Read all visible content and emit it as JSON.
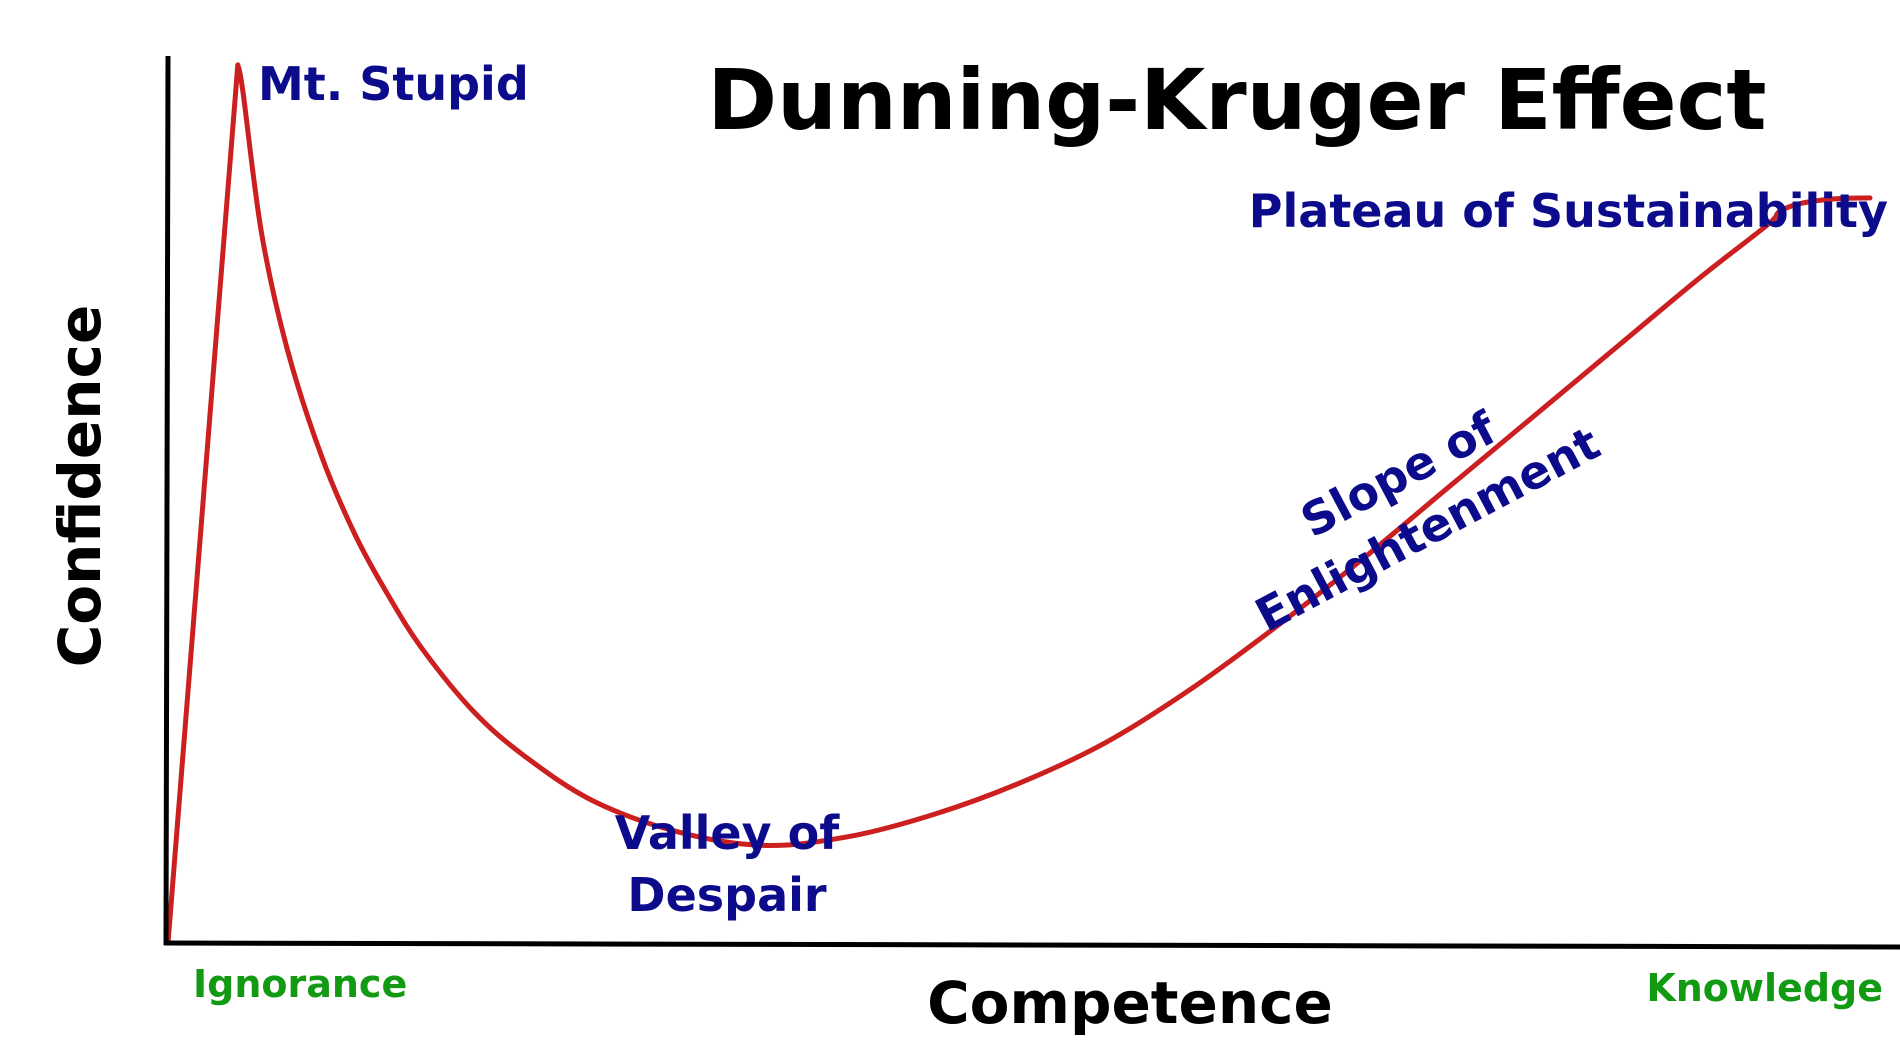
{
  "chart_data": {
    "type": "line",
    "title": "Dunning-Kruger Effect",
    "xlabel": "Competence",
    "ylabel": "Confidence",
    "x_tick_labels": [
      "Ignorance",
      "Knowledge"
    ],
    "grid": false,
    "xlim": [
      0,
      100
    ],
    "ylim": [
      0,
      100
    ],
    "series": [
      {
        "x": [
          0,
          4.1,
          4.4,
          5.5,
          7,
          9,
          11,
          13,
          15,
          18,
          21,
          25,
          30,
          35,
          40,
          45,
          50,
          55,
          60,
          65,
          70,
          75,
          80,
          85,
          90,
          94,
          94.7,
          96,
          98,
          100
        ],
        "y": [
          0,
          99,
          96,
          80,
          67,
          55,
          46,
          39,
          33,
          26,
          21,
          16,
          12.5,
          11,
          12,
          14.5,
          18,
          22.5,
          28.5,
          35.5,
          43,
          51,
          59,
          67,
          75,
          81,
          82.5,
          83.4,
          83.9,
          84
        ]
      }
    ],
    "annotations": [
      {
        "id": "mt-stupid",
        "text": "Mt. Stupid"
      },
      {
        "id": "valley",
        "lines": [
          "Valley of",
          "Despair"
        ]
      },
      {
        "id": "slope",
        "lines": [
          "Slope of",
          "Enlightenment"
        ]
      },
      {
        "id": "plateau",
        "text": "Plateau of Sustainability"
      }
    ]
  },
  "colors": {
    "curve": "#cc1f1f",
    "axes": "#000000",
    "title": "#000000",
    "axis_label": "#000000",
    "stage_label": "#0b0b8c",
    "tick_label": "#139a13"
  }
}
